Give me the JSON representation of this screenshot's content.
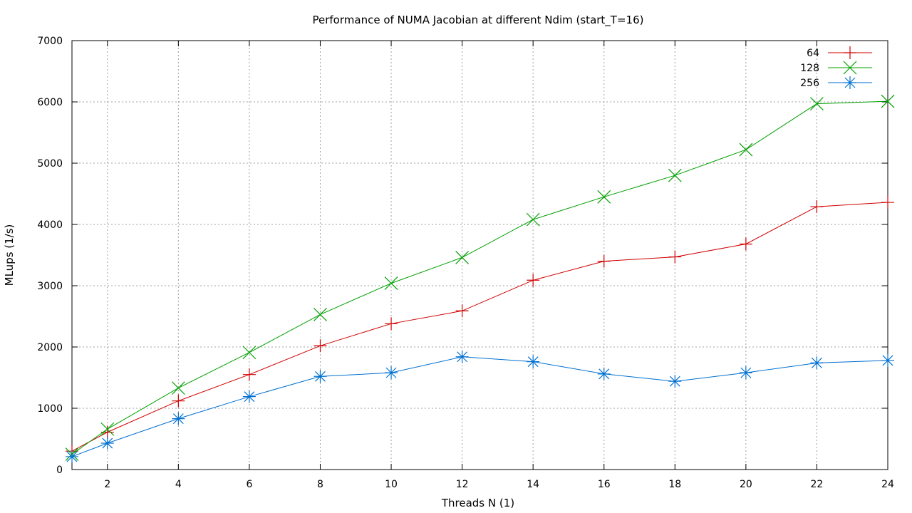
{
  "chart_data": {
    "type": "line",
    "title": "Performance of NUMA Jacobian at different Ndim (start_T=16)",
    "xlabel": "Threads N (1)",
    "ylabel": "MLups (1/s)",
    "xlim": [
      1,
      24
    ],
    "ylim": [
      0,
      7000
    ],
    "x_ticks": [
      2,
      4,
      6,
      8,
      10,
      12,
      14,
      16,
      18,
      20,
      22,
      24
    ],
    "y_ticks": [
      0,
      1000,
      2000,
      3000,
      4000,
      5000,
      6000,
      7000
    ],
    "grid": true,
    "legend_position": "top-right",
    "x": [
      1,
      2,
      4,
      6,
      8,
      10,
      12,
      14,
      16,
      18,
      20,
      22,
      24
    ],
    "series": [
      {
        "name": "64",
        "color": "#d00000",
        "marker": "plus",
        "values": [
          300,
          610,
          1120,
          1550,
          2020,
          2380,
          2590,
          3090,
          3400,
          3470,
          3680,
          4290,
          4360
        ]
      },
      {
        "name": "128",
        "color": "#00a000",
        "marker": "cross",
        "values": [
          250,
          660,
          1330,
          1910,
          2530,
          3040,
          3460,
          4080,
          4450,
          4800,
          5220,
          5970,
          6010
        ]
      },
      {
        "name": "256",
        "color": "#0070d0",
        "marker": "star",
        "values": [
          210,
          430,
          830,
          1190,
          1520,
          1580,
          1840,
          1760,
          1560,
          1440,
          1580,
          1740,
          1780
        ]
      }
    ]
  }
}
